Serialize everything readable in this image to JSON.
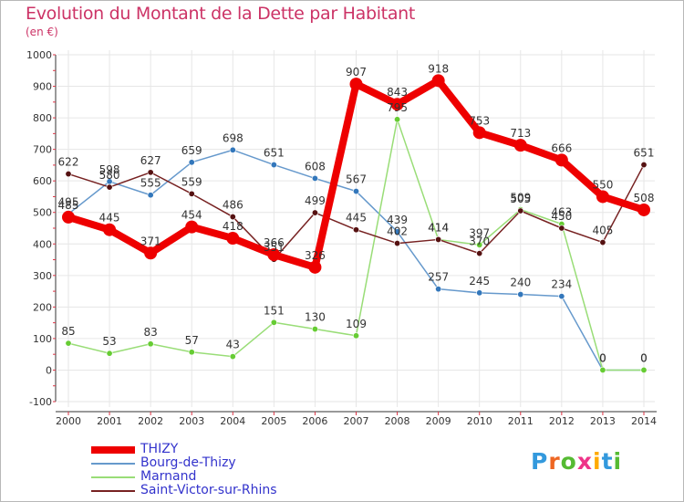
{
  "title": "Evolution du Montant de la Dette par Habitant",
  "subtitle": "(en €)",
  "logo": "Proxiti",
  "chart_data": {
    "type": "line",
    "title": "Evolution du Montant de la Dette par Habitant",
    "subtitle": "(en €)",
    "ylim": [
      -100,
      1000
    ],
    "yticks": [
      -100,
      0,
      100,
      200,
      300,
      400,
      500,
      600,
      700,
      800,
      900,
      1000
    ],
    "x": [
      2000,
      2001,
      2002,
      2003,
      2004,
      2005,
      2006,
      2007,
      2008,
      2009,
      2010,
      2011,
      2012,
      2013,
      2014
    ],
    "grid": true,
    "legend": "bottom-left",
    "series": [
      {
        "name": "Bourg-de-Thizy",
        "color": "#6699cc",
        "marker": "#3377bb",
        "values": [
          495,
          598,
          555,
          659,
          698,
          651,
          608,
          567,
          439,
          257,
          245,
          240,
          234,
          0,
          0
        ]
      },
      {
        "name": "Marnand",
        "color": "#99dd77",
        "marker": "#66cc33",
        "values": [
          85,
          53,
          83,
          57,
          43,
          151,
          130,
          109,
          795,
          414,
          397,
          509,
          463,
          0,
          0
        ]
      },
      {
        "name": "Saint-Victor-sur-Rhins",
        "color": "#772222",
        "marker": "#551111",
        "values": [
          622,
          580,
          627,
          559,
          486,
          351,
          499,
          445,
          402,
          414,
          370,
          505,
          450,
          405,
          651
        ]
      },
      {
        "name": "THIZY",
        "color": "#ee0000",
        "marker": "#ee0000",
        "thick": true,
        "values": [
          485,
          445,
          371,
          454,
          418,
          366,
          326,
          907,
          843,
          918,
          753,
          713,
          666,
          550,
          508
        ]
      }
    ]
  }
}
